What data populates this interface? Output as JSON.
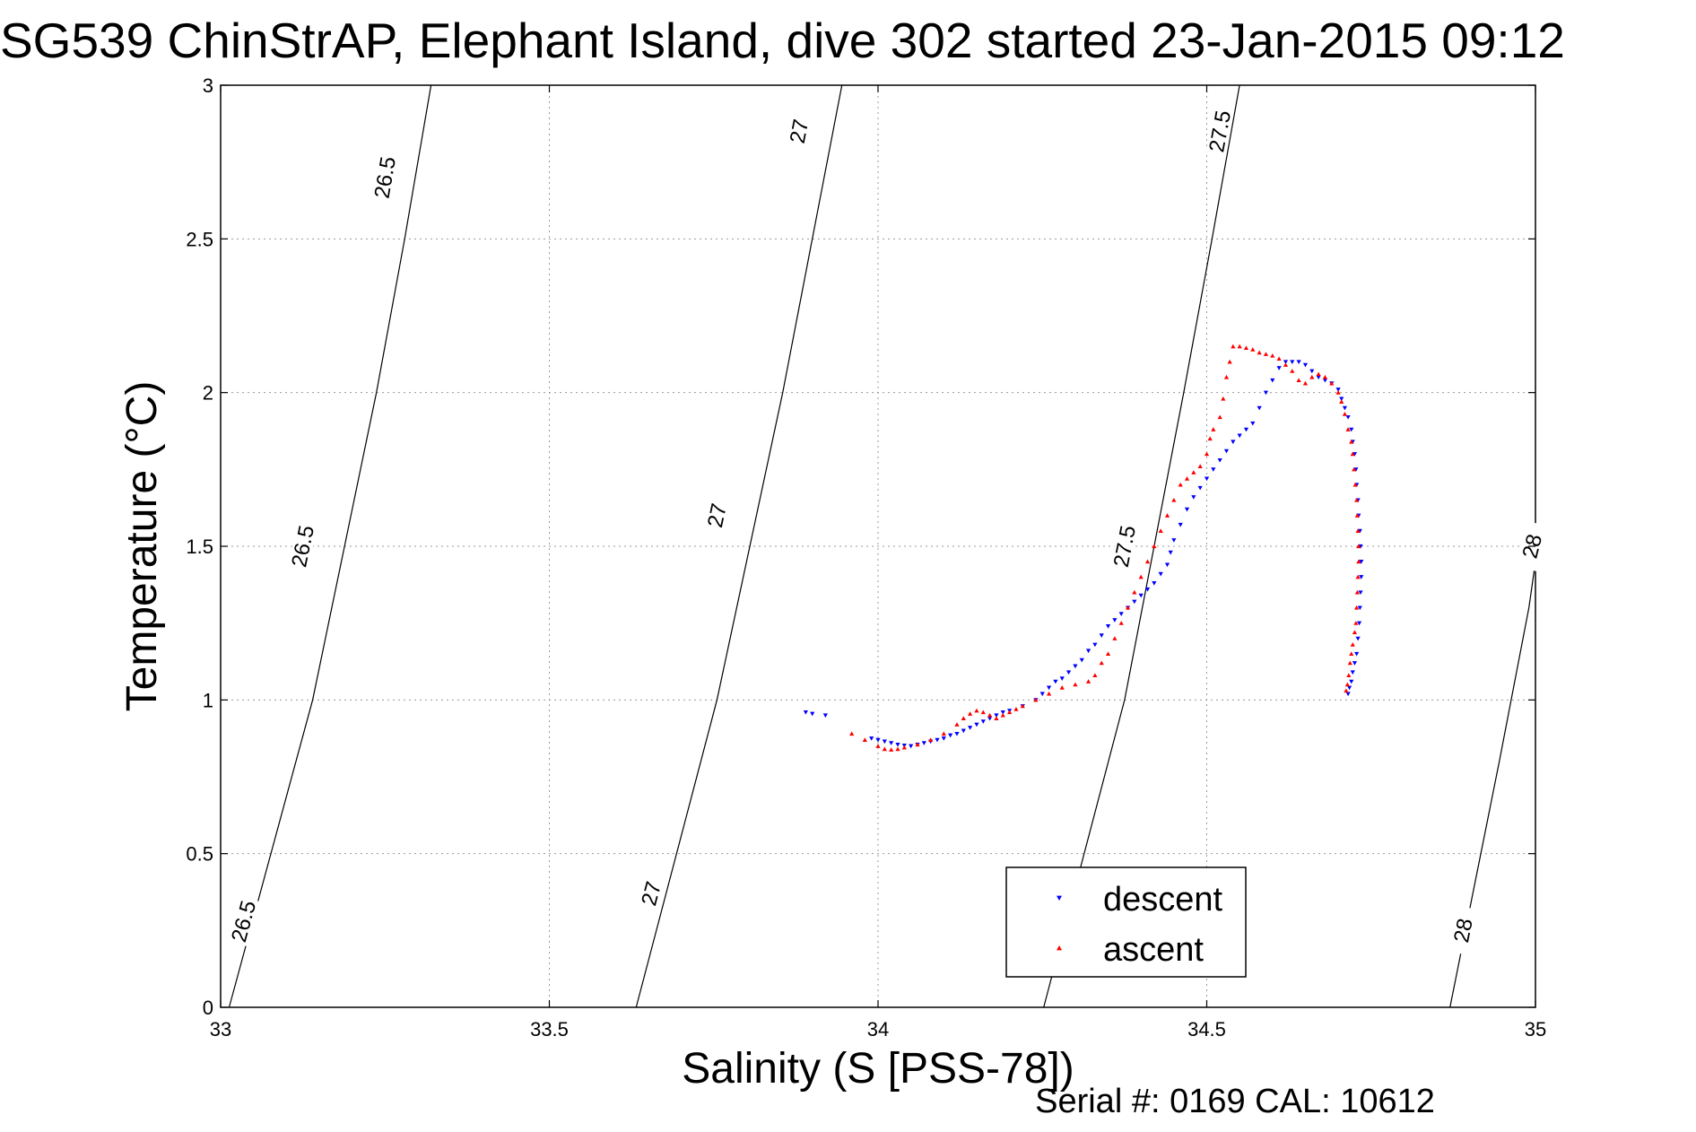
{
  "chart_data": {
    "type": "scatter",
    "title": "SG539 ChinStrAP, Elephant Island, dive 302 started 23-Jan-2015 09:12",
    "xlabel": "Salinity (S [PSS-78])",
    "ylabel": "Temperature (°C)",
    "xlim": [
      33,
      35
    ],
    "ylim": [
      0,
      3
    ],
    "xticks": [
      "33",
      "33.5",
      "34",
      "34.5",
      "35"
    ],
    "yticks": [
      "0",
      "0.5",
      "1",
      "1.5",
      "2",
      "2.5",
      "3"
    ],
    "grid": true,
    "legend_position": "bottom-right",
    "footer": "Serial #: 0169 CAL: 10612",
    "isopycnals": [
      {
        "level": "26.5",
        "points": [
          [
            33.013,
            0.0
          ],
          [
            33.14,
            1.0
          ],
          [
            33.237,
            2.0
          ],
          [
            33.28,
            2.5
          ],
          [
            33.32,
            3.0
          ]
        ],
        "labels": [
          [
            33.035,
            0.28
          ],
          [
            33.125,
            1.5
          ],
          [
            33.25,
            2.7
          ]
        ]
      },
      {
        "level": "27",
        "points": [
          [
            33.632,
            0.0
          ],
          [
            33.755,
            1.0
          ],
          [
            33.855,
            2.0
          ],
          [
            33.9,
            2.5
          ],
          [
            33.945,
            3.0
          ]
        ],
        "labels": [
          [
            33.655,
            0.37
          ],
          [
            33.755,
            1.6
          ],
          [
            33.88,
            2.85
          ]
        ]
      },
      {
        "level": "27.5",
        "points": [
          [
            34.252,
            0.0
          ],
          [
            34.375,
            1.0
          ],
          [
            34.465,
            2.0
          ],
          [
            34.508,
            2.5
          ],
          [
            34.55,
            3.0
          ]
        ],
        "labels": [
          [
            34.375,
            1.5
          ],
          [
            34.52,
            2.85
          ]
        ]
      },
      {
        "level": "28",
        "points": [
          [
            34.87,
            0.0
          ],
          [
            34.945,
            0.8
          ],
          [
            34.99,
            1.3
          ],
          [
            35.0,
            1.45
          ]
        ],
        "labels": [
          [
            34.89,
            0.25
          ],
          [
            34.995,
            1.5
          ]
        ]
      }
    ],
    "series": [
      {
        "name": "descent",
        "color": "#0000ff",
        "marker": "triangle-down",
        "points": [
          [
            33.89,
            0.96
          ],
          [
            33.9,
            0.955
          ],
          [
            33.92,
            0.95
          ],
          [
            33.99,
            0.875
          ],
          [
            34.0,
            0.87
          ],
          [
            34.01,
            0.865
          ],
          [
            34.02,
            0.86
          ],
          [
            34.03,
            0.855
          ],
          [
            34.04,
            0.852
          ],
          [
            34.05,
            0.85
          ],
          [
            34.06,
            0.855
          ],
          [
            34.07,
            0.86
          ],
          [
            34.08,
            0.865
          ],
          [
            34.09,
            0.87
          ],
          [
            34.1,
            0.875
          ],
          [
            34.11,
            0.885
          ],
          [
            34.12,
            0.89
          ],
          [
            34.13,
            0.9
          ],
          [
            34.14,
            0.91
          ],
          [
            34.15,
            0.92
          ],
          [
            34.16,
            0.93
          ],
          [
            34.17,
            0.94
          ],
          [
            34.18,
            0.95
          ],
          [
            34.19,
            0.96
          ],
          [
            34.2,
            0.965
          ],
          [
            34.22,
            0.98
          ],
          [
            34.24,
            1.0
          ],
          [
            34.25,
            1.02
          ],
          [
            34.26,
            1.04
          ],
          [
            34.27,
            1.06
          ],
          [
            34.28,
            1.07
          ],
          [
            34.29,
            1.09
          ],
          [
            34.3,
            1.11
          ],
          [
            34.31,
            1.13
          ],
          [
            34.32,
            1.16
          ],
          [
            34.33,
            1.18
          ],
          [
            34.34,
            1.21
          ],
          [
            34.35,
            1.24
          ],
          [
            34.36,
            1.26
          ],
          [
            34.37,
            1.28
          ],
          [
            34.38,
            1.3
          ],
          [
            34.39,
            1.32
          ],
          [
            34.4,
            1.34
          ],
          [
            34.41,
            1.36
          ],
          [
            34.42,
            1.38
          ],
          [
            34.43,
            1.41
          ],
          [
            34.44,
            1.44
          ],
          [
            34.445,
            1.48
          ],
          [
            34.45,
            1.52
          ],
          [
            34.46,
            1.57
          ],
          [
            34.47,
            1.62
          ],
          [
            34.48,
            1.66
          ],
          [
            34.49,
            1.69
          ],
          [
            34.5,
            1.72
          ],
          [
            34.51,
            1.75
          ],
          [
            34.52,
            1.78
          ],
          [
            34.53,
            1.81
          ],
          [
            34.54,
            1.84
          ],
          [
            34.55,
            1.86
          ],
          [
            34.56,
            1.88
          ],
          [
            34.57,
            1.9
          ],
          [
            34.58,
            1.95
          ],
          [
            34.59,
            2.0
          ],
          [
            34.6,
            2.04
          ],
          [
            34.61,
            2.08
          ],
          [
            34.62,
            2.1
          ],
          [
            34.63,
            2.1
          ],
          [
            34.64,
            2.1
          ],
          [
            34.65,
            2.09
          ],
          [
            34.66,
            2.07
          ],
          [
            34.67,
            2.05
          ],
          [
            34.68,
            2.04
          ],
          [
            34.69,
            2.03
          ],
          [
            34.7,
            2.01
          ],
          [
            34.705,
            1.98
          ],
          [
            34.71,
            1.95
          ],
          [
            34.715,
            1.92
          ],
          [
            34.72,
            1.88
          ],
          [
            34.722,
            1.84
          ],
          [
            34.725,
            1.8
          ],
          [
            34.727,
            1.75
          ],
          [
            34.728,
            1.7
          ],
          [
            34.73,
            1.65
          ],
          [
            34.731,
            1.6
          ],
          [
            34.733,
            1.55
          ],
          [
            34.734,
            1.5
          ],
          [
            34.735,
            1.45
          ],
          [
            34.735,
            1.4
          ],
          [
            34.734,
            1.35
          ],
          [
            34.733,
            1.3
          ],
          [
            34.732,
            1.25
          ],
          [
            34.73,
            1.2
          ],
          [
            34.728,
            1.15
          ],
          [
            34.725,
            1.12
          ],
          [
            34.722,
            1.09
          ],
          [
            34.72,
            1.06
          ],
          [
            34.717,
            1.04
          ],
          [
            34.715,
            1.02
          ]
        ]
      },
      {
        "name": "ascent",
        "color": "#ff0000",
        "marker": "triangle-up",
        "points": [
          [
            33.96,
            0.89
          ],
          [
            33.98,
            0.87
          ],
          [
            34.0,
            0.85
          ],
          [
            34.01,
            0.84
          ],
          [
            34.02,
            0.838
          ],
          [
            34.03,
            0.84
          ],
          [
            34.04,
            0.845
          ],
          [
            34.06,
            0.855
          ],
          [
            34.08,
            0.87
          ],
          [
            34.1,
            0.89
          ],
          [
            34.12,
            0.92
          ],
          [
            34.13,
            0.94
          ],
          [
            34.14,
            0.955
          ],
          [
            34.15,
            0.965
          ],
          [
            34.16,
            0.96
          ],
          [
            34.17,
            0.95
          ],
          [
            34.18,
            0.94
          ],
          [
            34.19,
            0.95
          ],
          [
            34.2,
            0.96
          ],
          [
            34.21,
            0.97
          ],
          [
            34.22,
            0.98
          ],
          [
            34.24,
            1.0
          ],
          [
            34.26,
            1.02
          ],
          [
            34.28,
            1.04
          ],
          [
            34.3,
            1.05
          ],
          [
            34.32,
            1.06
          ],
          [
            34.33,
            1.08
          ],
          [
            34.34,
            1.12
          ],
          [
            34.35,
            1.15
          ],
          [
            34.36,
            1.2
          ],
          [
            34.37,
            1.25
          ],
          [
            34.38,
            1.3
          ],
          [
            34.39,
            1.35
          ],
          [
            34.4,
            1.4
          ],
          [
            34.41,
            1.45
          ],
          [
            34.42,
            1.5
          ],
          [
            34.43,
            1.55
          ],
          [
            34.44,
            1.6
          ],
          [
            34.45,
            1.65
          ],
          [
            34.46,
            1.7
          ],
          [
            34.47,
            1.72
          ],
          [
            34.48,
            1.74
          ],
          [
            34.49,
            1.76
          ],
          [
            34.5,
            1.8
          ],
          [
            34.505,
            1.85
          ],
          [
            34.51,
            1.88
          ],
          [
            34.52,
            1.92
          ],
          [
            34.525,
            1.98
          ],
          [
            34.53,
            2.05
          ],
          [
            34.535,
            2.1
          ],
          [
            34.54,
            2.15
          ],
          [
            34.55,
            2.15
          ],
          [
            34.56,
            2.145
          ],
          [
            34.57,
            2.14
          ],
          [
            34.58,
            2.13
          ],
          [
            34.59,
            2.125
          ],
          [
            34.6,
            2.12
          ],
          [
            34.61,
            2.11
          ],
          [
            34.62,
            2.09
          ],
          [
            34.63,
            2.07
          ],
          [
            34.64,
            2.04
          ],
          [
            34.65,
            2.03
          ],
          [
            34.66,
            2.05
          ],
          [
            34.67,
            2.06
          ],
          [
            34.68,
            2.05
          ],
          [
            34.69,
            2.03
          ],
          [
            34.7,
            2.0
          ],
          [
            34.705,
            1.97
          ],
          [
            34.71,
            1.93
          ],
          [
            34.715,
            1.88
          ],
          [
            34.72,
            1.84
          ],
          [
            34.722,
            1.8
          ],
          [
            34.724,
            1.75
          ],
          [
            34.726,
            1.7
          ],
          [
            34.728,
            1.65
          ],
          [
            34.729,
            1.6
          ],
          [
            34.73,
            1.55
          ],
          [
            34.731,
            1.5
          ],
          [
            34.731,
            1.45
          ],
          [
            34.73,
            1.4
          ],
          [
            34.729,
            1.35
          ],
          [
            34.728,
            1.3
          ],
          [
            34.727,
            1.25
          ],
          [
            34.725,
            1.22
          ],
          [
            34.722,
            1.18
          ],
          [
            34.72,
            1.15
          ],
          [
            34.718,
            1.12
          ],
          [
            34.716,
            1.08
          ],
          [
            34.714,
            1.05
          ],
          [
            34.712,
            1.03
          ]
        ]
      }
    ]
  }
}
